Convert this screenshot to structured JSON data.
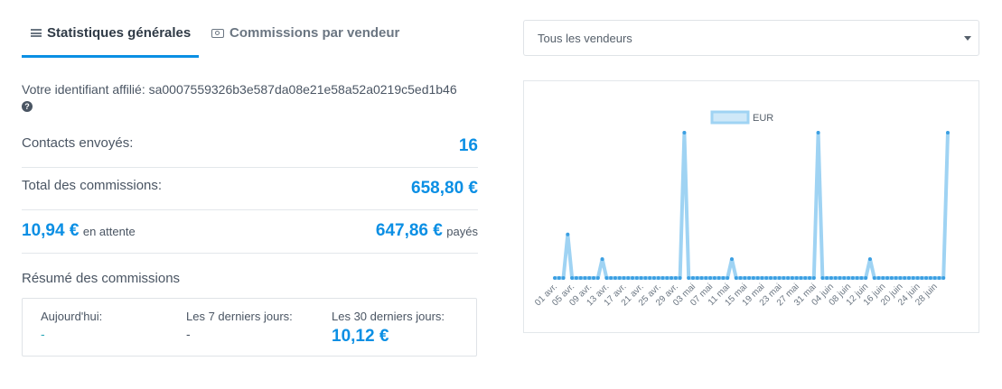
{
  "tabs": [
    {
      "label": "Statistiques générales",
      "icon": "menu-icon",
      "active": true
    },
    {
      "label": "Commissions par vendeur",
      "icon": "money-icon",
      "active": false
    }
  ],
  "affiliate": {
    "text": "Votre identifiant affilié: sa0007559326b3e587da08e21e58a52a0219c5ed1b46"
  },
  "stats": {
    "contacts_label": "Contacts envoyés:",
    "contacts_value": "16",
    "total_label": "Total des commissions:",
    "total_value": "658,80 €",
    "pending_value": "10,94 €",
    "pending_label": "en attente",
    "paid_value": "647,86 €",
    "paid_label": "payés"
  },
  "summary": {
    "title": "Résumé des commissions",
    "cols": [
      {
        "label": "Aujourd'hui:",
        "value": "-"
      },
      {
        "label": "Les 7 derniers jours:",
        "value": "-"
      },
      {
        "label": "Les 30 derniers jours:",
        "value": "10,12 €"
      }
    ]
  },
  "vendor_select": {
    "selected": "Tous les vendeurs"
  },
  "colors": {
    "accent": "#0b8fe4",
    "line": "#9fd3f3",
    "point": "#3b9fe2"
  },
  "chart_data": {
    "type": "line",
    "legend": [
      "EUR"
    ],
    "legend_position": "top-center",
    "grid": false,
    "x_tick_labels": [
      "01 avr.",
      "05 avr.",
      "09 avr.",
      "13 avr.",
      "17 avr.",
      "21 avr.",
      "25 avr.",
      "29 avr.",
      "03 mai",
      "07 mai",
      "11 mai",
      "15 mai",
      "19 mai",
      "23 mai",
      "27 mai",
      "31 mai",
      "04 juin",
      "08 juin",
      "12 juin",
      "16 juin",
      "20 juin",
      "24 juin",
      "28 juin"
    ],
    "series": [
      {
        "name": "EUR",
        "start": "01 avr.",
        "spikes": [
          {
            "day": 3,
            "value": 0.3
          },
          {
            "day": 11,
            "value": 0.13
          },
          {
            "day": 30,
            "value": 1.0
          },
          {
            "day": 41,
            "value": 0.13
          },
          {
            "day": 61,
            "value": 1.0
          },
          {
            "day": 73,
            "value": 0.13
          },
          {
            "day": 91,
            "value": 1.0
          }
        ],
        "count": 92
      }
    ]
  }
}
